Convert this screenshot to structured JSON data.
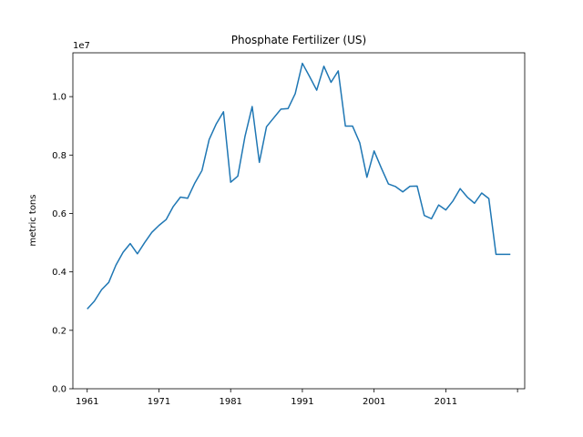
{
  "chart_data": {
    "type": "line",
    "title": "Phosphate Fertilizer (US)",
    "xlabel": "",
    "ylabel": "metric tons",
    "y_offset_label": "1e7",
    "xlim": [
      1959,
      2022
    ],
    "ylim": [
      0,
      11500000
    ],
    "x_ticks": [
      1961,
      1971,
      1981,
      1991,
      2001,
      2011,
      2021
    ],
    "x_tick_labels": [
      "1961",
      "1971",
      "1981",
      "1991",
      "2001",
      "2011",
      ""
    ],
    "y_ticks": [
      0,
      2000000,
      4000000,
      6000000,
      8000000,
      10000000
    ],
    "y_tick_labels": [
      "0.0",
      "0.2",
      "0.4",
      "0.6",
      "0.8",
      "1.0"
    ],
    "grid": false,
    "line_color": "#1f77b4",
    "series": [
      {
        "x": [
          1961,
          1962,
          1963,
          1964,
          1965,
          1966,
          1967,
          1968,
          1969,
          1970,
          1971,
          1972,
          1973,
          1974,
          1975,
          1976,
          1977,
          1978,
          1979,
          1980,
          1981,
          1982,
          1983,
          1984,
          1985,
          1986,
          1987,
          1988,
          1989,
          1990,
          1991,
          1992,
          1993,
          1994,
          1995,
          1996,
          1997,
          1998,
          1999,
          2000,
          2001,
          2002,
          2003,
          2004,
          2005,
          2006,
          2007,
          2008,
          2009,
          2010,
          2011,
          2012,
          2013,
          2014,
          2015,
          2016,
          2017,
          2018,
          2019,
          2020
        ],
        "values": [
          2730000,
          3000000,
          3390000,
          3640000,
          4230000,
          4670000,
          4970000,
          4620000,
          5000000,
          5350000,
          5590000,
          5790000,
          6240000,
          6560000,
          6520000,
          7040000,
          7470000,
          8530000,
          9070000,
          9480000,
          7070000,
          7280000,
          8640000,
          9660000,
          7750000,
          8970000,
          9270000,
          9570000,
          9590000,
          10100000,
          11140000,
          10690000,
          10220000,
          11040000,
          10490000,
          10880000,
          8990000,
          8990000,
          8420000,
          7240000,
          8140000,
          7560000,
          7010000,
          6920000,
          6740000,
          6930000,
          6940000,
          5930000,
          5820000,
          6290000,
          6120000,
          6430000,
          6850000,
          6560000,
          6350000,
          6700000,
          6510000,
          4600000,
          4600000,
          4600000
        ]
      }
    ]
  }
}
